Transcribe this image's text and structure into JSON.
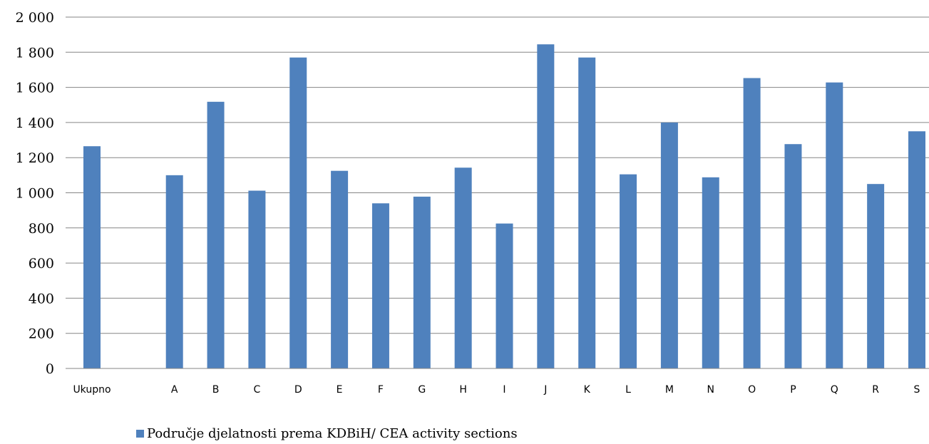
{
  "chart_data": {
    "type": "bar",
    "categories": [
      "Ukupno",
      "",
      "A",
      "B",
      "C",
      "D",
      "E",
      "F",
      "G",
      "H",
      "I",
      "J",
      "K",
      "L",
      "M",
      "N",
      "O",
      "P",
      "Q",
      "R",
      "S"
    ],
    "series": [
      {
        "name": "Područje djelatnosti prema KDBiH/ CEA activity sections",
        "values": [
          1265,
          null,
          1100,
          1518,
          1012,
          1770,
          1125,
          940,
          978,
          1143,
          825,
          1845,
          1770,
          1105,
          1400,
          1088,
          1653,
          1277,
          1628,
          1050,
          1350
        ]
      }
    ],
    "ylim": [
      0,
      2000
    ],
    "yticks": [
      "0",
      "200",
      "400",
      "600",
      "800",
      "1 000",
      "1 200",
      "1 400",
      "1 600",
      "1 800",
      "2 000"
    ],
    "grid": true,
    "legend_position": "bottom",
    "bar_color": "#4f81bd"
  }
}
